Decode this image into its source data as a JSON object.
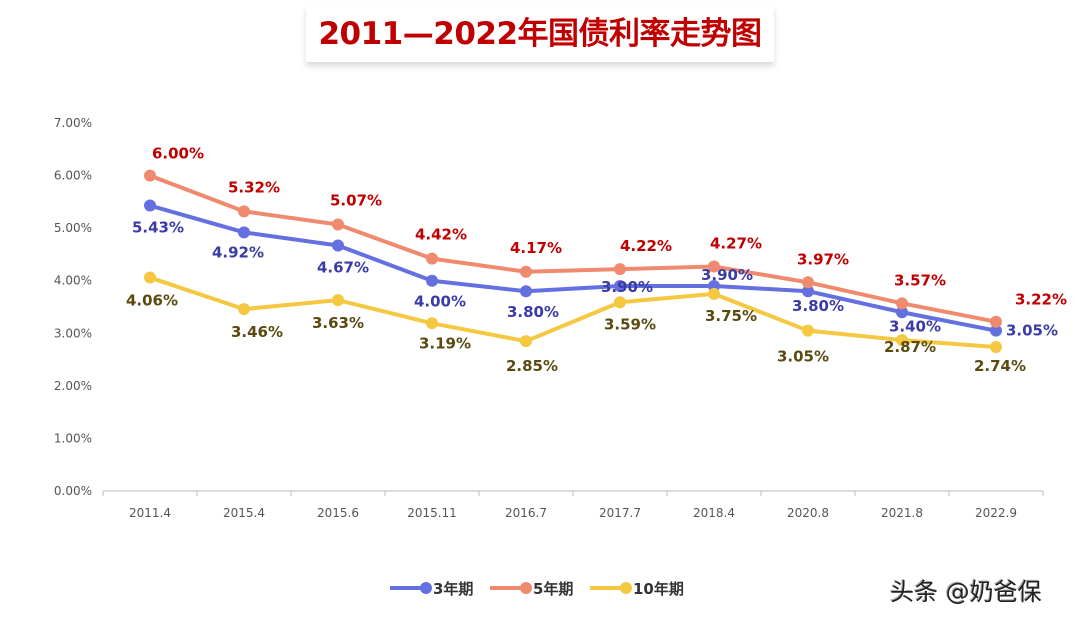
{
  "chart_data": {
    "type": "line",
    "title": "2011—2022年国债利率走势图",
    "categories": [
      "2011.4",
      "2015.4",
      "2015.6",
      "2015.11",
      "2016.7",
      "2017.7",
      "2018.4",
      "2020.8",
      "2021.8",
      "2022.9"
    ],
    "ylim": [
      0,
      7
    ],
    "yticks": [
      "0.00%",
      "1.00%",
      "2.00%",
      "3.00%",
      "4.00%",
      "5.00%",
      "6.00%",
      "7.00%"
    ],
    "grid": false,
    "legend": "bottom",
    "series": [
      {
        "name": "3年期",
        "color": "#6470e0",
        "label_color": "#3b3ba8",
        "values": [
          5.43,
          4.92,
          4.67,
          4.0,
          3.8,
          3.9,
          3.9,
          3.8,
          3.4,
          3.05
        ],
        "labels": [
          "5.43%",
          "4.92%",
          "4.67%",
          "4.00%",
          "3.80%",
          "3.90%",
          "3.90%",
          "3.80%",
          "3.40%",
          "3.05%"
        ]
      },
      {
        "name": "5年期",
        "color": "#f08a6e",
        "label_color": "#c00000",
        "values": [
          6.0,
          5.32,
          5.07,
          4.42,
          4.17,
          4.22,
          4.27,
          3.97,
          3.57,
          3.22
        ],
        "labels": [
          "6.00%",
          "5.32%",
          "5.07%",
          "4.42%",
          "4.17%",
          "4.22%",
          "4.27%",
          "3.97%",
          "3.57%",
          "3.22%"
        ]
      },
      {
        "name": "10年期",
        "color": "#f5c842",
        "label_color": "#5a4a10",
        "values": [
          4.06,
          3.46,
          3.63,
          3.19,
          2.85,
          3.59,
          3.75,
          3.05,
          2.87,
          2.74
        ],
        "labels": [
          "4.06%",
          "3.46%",
          "3.63%",
          "3.19%",
          "2.85%",
          "3.59%",
          "3.75%",
          "3.05%",
          "2.87%",
          "2.74%"
        ]
      }
    ]
  },
  "watermark": "头条 @奶爸保"
}
